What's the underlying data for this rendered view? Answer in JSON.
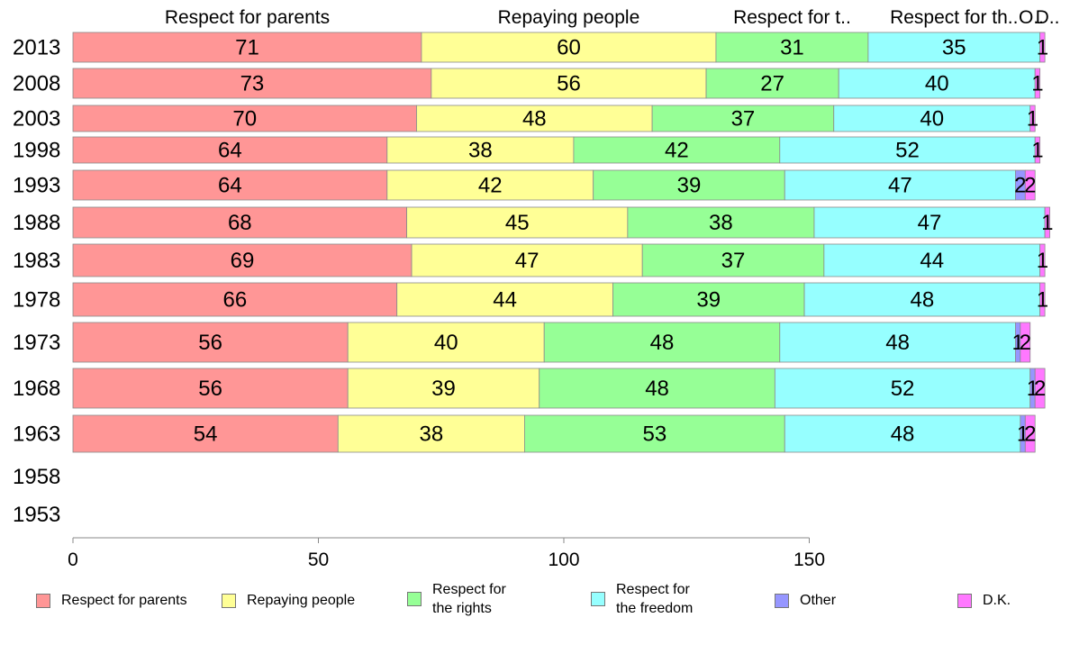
{
  "chart_data": {
    "type": "bar",
    "orientation": "horizontal",
    "stacked": true,
    "categories": [
      "2013",
      "2008",
      "2003",
      "1998",
      "1993",
      "1988",
      "1983",
      "1978",
      "1973",
      "1968",
      "1963",
      "1958",
      "1953"
    ],
    "series": [
      {
        "name": "Respect for parents",
        "color": "#ff9696",
        "values": [
          71,
          73,
          70,
          64,
          64,
          68,
          69,
          66,
          56,
          56,
          54,
          null,
          null
        ]
      },
      {
        "name": "Repaying people",
        "color": "#ffff96",
        "values": [
          60,
          56,
          48,
          38,
          42,
          45,
          47,
          44,
          40,
          39,
          38,
          null,
          null
        ]
      },
      {
        "name": "Respect for the rights",
        "color": "#96ff96",
        "values": [
          31,
          27,
          37,
          42,
          39,
          38,
          37,
          39,
          48,
          48,
          53,
          null,
          null
        ]
      },
      {
        "name": "Respect for the freedom",
        "color": "#96ffff",
        "values": [
          35,
          40,
          40,
          52,
          47,
          47,
          44,
          48,
          48,
          52,
          48,
          null,
          null
        ]
      },
      {
        "name": "Other",
        "color": "#9696ff",
        "values": [
          0,
          0,
          0,
          0,
          2,
          0,
          0,
          0,
          1,
          1,
          1,
          null,
          null
        ]
      },
      {
        "name": "D.K.",
        "color": "#ff78ff",
        "values": [
          1,
          1,
          1,
          1,
          2,
          1,
          1,
          1,
          2,
          2,
          2,
          null,
          null
        ]
      }
    ],
    "top_labels": [
      "Respect for parents",
      "Repaying people",
      "Respect for t..",
      "Respect for th..",
      "O..",
      "D.."
    ],
    "xticks": [
      0,
      50,
      100,
      150
    ],
    "xlim": [
      0,
      200
    ],
    "legend": "bottom",
    "legend_labels": [
      "Respect for parents",
      "Repaying people",
      "Respect for\nthe rights",
      "Respect for\nthe freedom",
      "Other",
      "D.K."
    ]
  }
}
